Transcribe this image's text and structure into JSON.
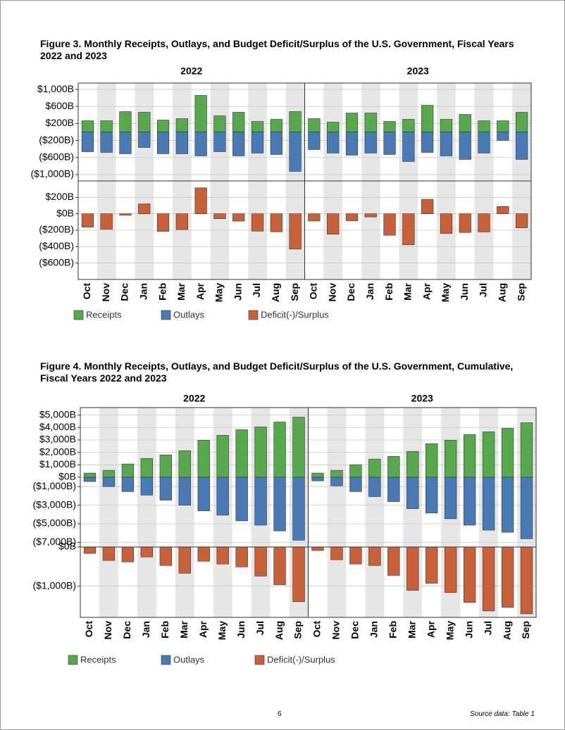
{
  "chart_data": [
    {
      "type": "bar",
      "title": "Figure 3. Monthly Receipts, Outlays, and Budget Deficit/Surplus of the U.S. Government, Fiscal Years 2022 and 2023",
      "groups": [
        "2022",
        "2023"
      ],
      "categories": [
        "Oct",
        "Nov",
        "Dec",
        "Jan",
        "Feb",
        "Mar",
        "Apr",
        "May",
        "Jun",
        "Jul",
        "Aug",
        "Sep"
      ],
      "top": {
        "ylim": [
          -1150,
          1150
        ],
        "yticks": [
          {
            "value": 1000,
            "label": "$1,000B"
          },
          {
            "value": 600,
            "label": "$600B"
          },
          {
            "value": 200,
            "label": "$200B"
          },
          {
            "value": -200,
            "label": "($200B)"
          },
          {
            "value": -600,
            "label": "($600B)"
          },
          {
            "value": -1000,
            "label": "($1,000B)"
          }
        ]
      },
      "bottom": {
        "ylim": [
          -800,
          400
        ],
        "yticks": [
          {
            "value": 200,
            "label": "$200B"
          },
          {
            "value": 0,
            "label": "$0B"
          },
          {
            "value": -200,
            "label": "($200B)"
          },
          {
            "value": -400,
            "label": "($400B)"
          },
          {
            "value": -600,
            "label": "($600B)"
          }
        ]
      },
      "series": [
        {
          "name": "Receipts",
          "color": "#58a84e",
          "axis": "top",
          "values": [
            [
              264,
              264,
              480,
              463,
              281,
              314,
              860,
              380,
              463,
              248,
              298,
              480
            ],
            [
              314,
              231,
              446,
              446,
              248,
              298,
              628,
              298,
              413,
              264,
              264,
              463
            ]
          ]
        },
        {
          "name": "Outlays",
          "color": "#4a7ab5",
          "axis": "top",
          "values": [
            [
              -463,
              -480,
              -512,
              -364,
              -512,
              -512,
              -562,
              -463,
              -562,
              -496,
              -529,
              -926
            ],
            [
              -413,
              -496,
              -545,
              -496,
              -529,
              -694,
              -480,
              -562,
              -645,
              -496,
              -198,
              -645
            ]
          ]
        },
        {
          "name": "Deficit(-)/Surplus",
          "color": "#c8603a",
          "axis": "bottom",
          "values": [
            [
              -162,
              -188,
              -17,
              120,
              -214,
              -192,
              316,
              -60,
              -89,
              -211,
              -220,
              -430
            ],
            [
              -88,
              -249,
              -85,
              -39,
              -262,
              -378,
              176,
              -240,
              -228,
              -221,
              89,
              -171
            ]
          ]
        }
      ]
    },
    {
      "type": "bar",
      "title": "Figure 4. Monthly Receipts, Outlays, and Budget Deficit/Surplus of the U.S. Government, Cumulative, Fiscal Years 2022 and 2023",
      "groups": [
        "2022",
        "2023"
      ],
      "categories": [
        "Oct",
        "Nov",
        "Dec",
        "Jan",
        "Feb",
        "Mar",
        "Apr",
        "May",
        "Jun",
        "Jul",
        "Aug",
        "Sep"
      ],
      "top": {
        "ylim": [
          -7500,
          5600
        ],
        "split_zero": true,
        "yticks": [
          {
            "value": 5000,
            "label": "$5,000B"
          },
          {
            "value": 4000,
            "label": "$4,000B"
          },
          {
            "value": 3000,
            "label": "$3,000B"
          },
          {
            "value": 2000,
            "label": "$2,000B"
          },
          {
            "value": 1000,
            "label": "$1,000B"
          },
          {
            "value": 0,
            "label": "$0B"
          },
          {
            "value": -1000,
            "label": "($1,000B)"
          },
          {
            "value": -3000,
            "label": "($3,000B)"
          },
          {
            "value": -5000,
            "label": "($5,000B)"
          },
          {
            "value": -7000,
            "label": "($7,000B)"
          }
        ]
      },
      "bottom": {
        "ylim": [
          -1800,
          0
        ],
        "yticks": [
          {
            "value": 0,
            "label": "$0B"
          },
          {
            "value": -1000,
            "label": "($1,000B)"
          }
        ]
      },
      "series": [
        {
          "name": "Receipts",
          "color": "#58a84e",
          "axis": "top",
          "values": [
            [
              337,
              562,
              1067,
              1517,
              1798,
              2135,
              2978,
              3371,
              3820,
              4045,
              4438,
              4831
            ],
            [
              337,
              562,
              1011,
              1461,
              1685,
              2079,
              2697,
              2978,
              3427,
              3652,
              3933,
              4382
            ]
          ]
        },
        {
          "name": "Outlays",
          "color": "#4a7ab5",
          "axis": "top",
          "values": [
            [
              -460,
              -1000,
              -1540,
              -1920,
              -2460,
              -3000,
              -3615,
              -4080,
              -4690,
              -5150,
              -5770,
              -6770
            ],
            [
              -385,
              -920,
              -1540,
              -2080,
              -2615,
              -3385,
              -3850,
              -4460,
              -5150,
              -5690,
              -5920,
              -6615
            ]
          ]
        },
        {
          "name": "Deficit(-)/Surplus",
          "color": "#c8603a",
          "axis": "bottom",
          "values": [
            [
              -164,
              -345,
              -382,
              -255,
              -473,
              -673,
              -364,
              -436,
              -509,
              -745,
              -964,
              -1400
            ],
            [
              -91,
              -327,
              -436,
              -473,
              -727,
              -1109,
              -927,
              -1164,
              -1418,
              -1636,
              -1545,
              -1709
            ]
          ]
        }
      ]
    }
  ],
  "footer": {
    "page": "6",
    "source": "Source data: Table 1"
  }
}
